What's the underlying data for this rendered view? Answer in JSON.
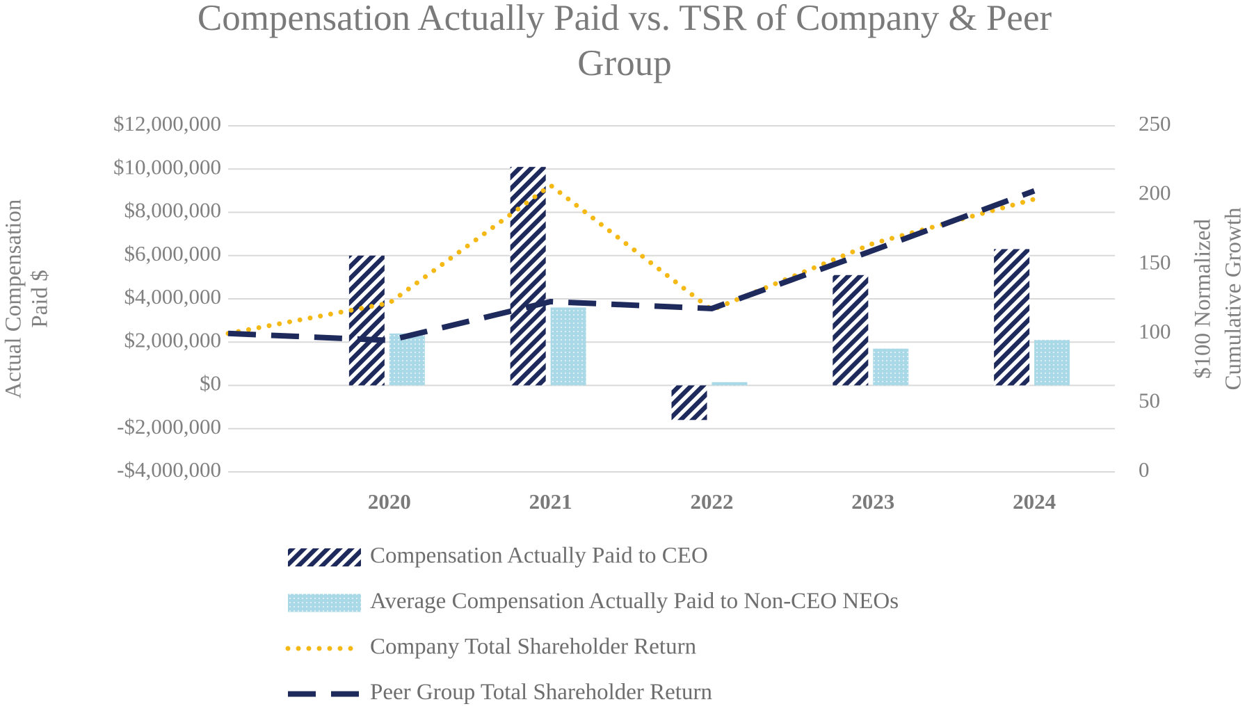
{
  "chart_data": {
    "type": "bar",
    "title": [
      "Compensation Actually Paid vs. TSR of Company & Peer",
      "Group"
    ],
    "ylabel": [
      "Actual Compensation",
      "Paid $"
    ],
    "y2label": [
      "$100 Normalized",
      "Cumulative Growth"
    ],
    "categories": [
      null,
      "2020",
      "2021",
      "2022",
      "2023",
      "2024"
    ],
    "ylim": [
      -4000000,
      12000000
    ],
    "yticks": [
      {
        "value": -4000000,
        "label": "-$4,000,000"
      },
      {
        "value": -2000000,
        "label": "-$2,000,000"
      },
      {
        "value": 0,
        "label": "$0"
      },
      {
        "value": 2000000,
        "label": "$2,000,000"
      },
      {
        "value": 4000000,
        "label": "$4,000,000"
      },
      {
        "value": 6000000,
        "label": "$6,000,000"
      },
      {
        "value": 8000000,
        "label": "$8,000,000"
      },
      {
        "value": 10000000,
        "label": "$10,000,000"
      },
      {
        "value": 12000000,
        "label": "$12,000,000"
      }
    ],
    "y2lim": [
      0,
      250
    ],
    "y2ticks": [
      0,
      50,
      100,
      150,
      200,
      250
    ],
    "grid": true,
    "series": [
      {
        "name": "Compensation Actually Paid to CEO",
        "type": "bar",
        "pattern": "hatch",
        "color": "#1f2a5c",
        "values": [
          null,
          6000000,
          10100000,
          -1600000,
          5100000,
          6300000
        ]
      },
      {
        "name": "Average Compensation Actually Paid to Non-CEO NEOs",
        "type": "bar",
        "pattern": "dots",
        "color": "#a9d8e6",
        "values": [
          null,
          2400000,
          3600000,
          150000,
          1700000,
          2100000
        ]
      },
      {
        "name": "Company Total Shareholder Return",
        "type": "line",
        "dash": "dotted",
        "axis": "y2",
        "color": "#f5b915",
        "values": [
          100,
          122,
          207,
          117,
          165,
          197
        ]
      },
      {
        "name": "Peer Group Total Shareholder Return",
        "type": "line",
        "dash": "dashed",
        "axis": "y2",
        "color": "#1f2a5c",
        "values": [
          100,
          95,
          123,
          118,
          160,
          203
        ]
      }
    ]
  }
}
